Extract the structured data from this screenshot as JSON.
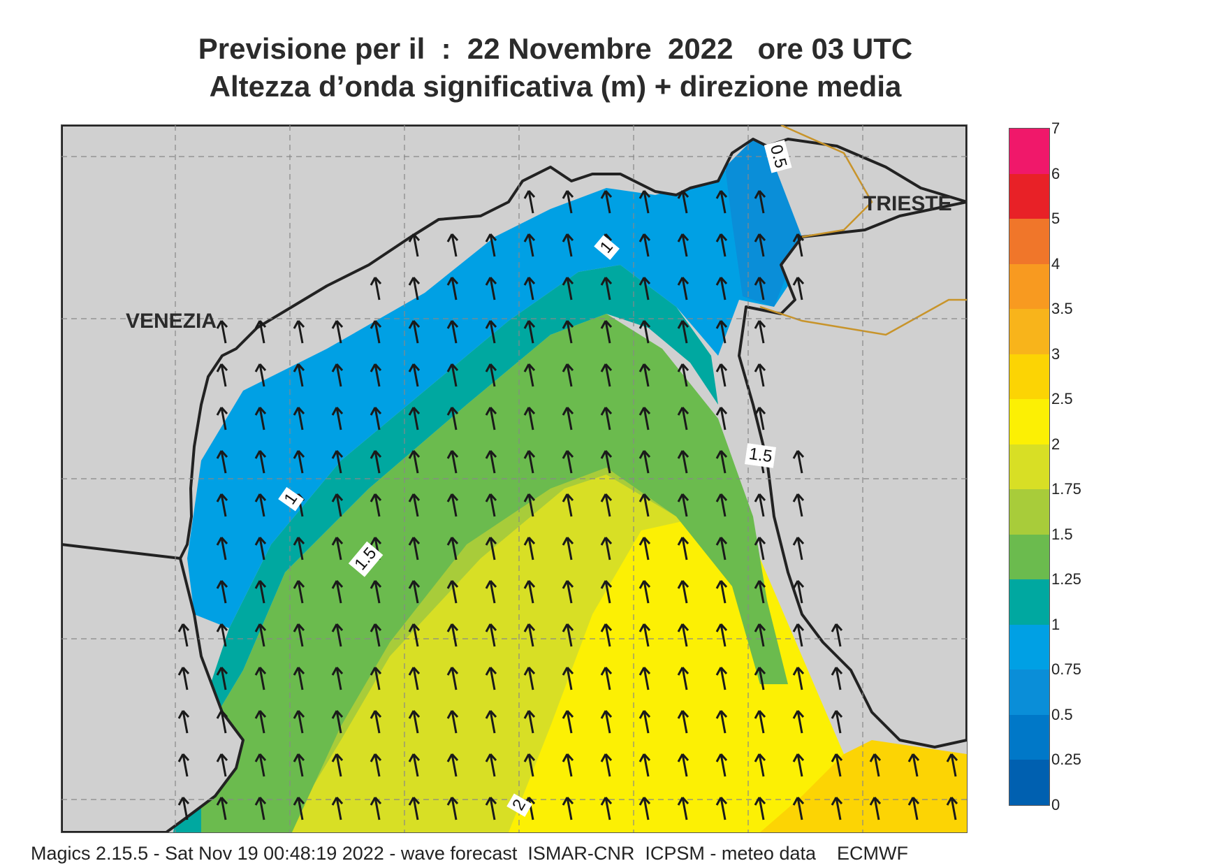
{
  "title": {
    "line1": "Previsione per il  :  22 Novembre  2022   ore 03 UTC",
    "line2": "Altezza d’onda significativa (m) + direzione media"
  },
  "map": {
    "places": {
      "venezia": "VENEZIA",
      "trieste": "TRIESTE"
    },
    "contour_labels": [
      "0.5",
      "1",
      "1",
      "1.5",
      "1.5",
      "2"
    ],
    "arrow_direction": "north-northwest",
    "land_color": "#d0d0d0",
    "coastline_color": "#222222",
    "border_color": "#c8942a"
  },
  "legend": {
    "levels": [
      "7",
      "6",
      "5",
      "4",
      "3.5",
      "3",
      "2.5",
      "2",
      "1.75",
      "1.5",
      "1.25",
      "1",
      "0.75",
      "0.5",
      "0.25",
      "0"
    ],
    "colors": [
      "#f0186a",
      "#e82127",
      "#f0762a",
      "#f89a20",
      "#f8b41b",
      "#fcd404",
      "#fcf004",
      "#d8df25",
      "#a8cc3a",
      "#6bbb4e",
      "#00a8a0",
      "#00a0e4",
      "#0a8ed8",
      "#0078c8",
      "#0060b0"
    ]
  },
  "footer": "Magics 2.15.5 - Sat Nov 19 00:48:19 2022 - wave forecast  ISMAR-CNR  ICPSM - meteo data    ECMWF"
}
